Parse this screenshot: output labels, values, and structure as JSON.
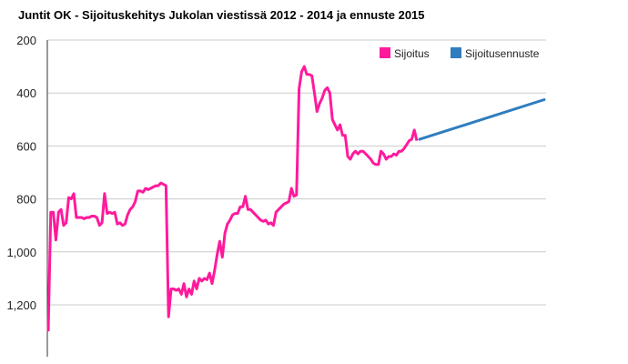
{
  "chart_data": {
    "type": "line",
    "title": "Juntit OK - Sijoituskehitys Jukolan viestissä 2012 - 2014 ja ennuste 2015",
    "xlabel": "",
    "ylabel": "",
    "y_inverted": true,
    "ylim": [
      200,
      1300
    ],
    "yticks": [
      200,
      400,
      600,
      800,
      1000,
      1200
    ],
    "ytick_labels": [
      "200",
      "400",
      "600",
      "800",
      "1,000",
      "1,200"
    ],
    "grid": true,
    "legend_position": "top-right",
    "series": [
      {
        "name": "Sijoitus",
        "color": "#ff1a9c",
        "values": [
          1300,
          850,
          850,
          955,
          850,
          840,
          900,
          890,
          795,
          800,
          780,
          870,
          870,
          870,
          875,
          870,
          870,
          865,
          865,
          870,
          900,
          890,
          780,
          855,
          850,
          855,
          850,
          895,
          890,
          900,
          895,
          860,
          840,
          830,
          810,
          770,
          770,
          775,
          760,
          765,
          760,
          755,
          750,
          750,
          740,
          745,
          750,
          1245,
          1140,
          1140,
          1145,
          1140,
          1160,
          1120,
          1170,
          1140,
          1160,
          1110,
          1140,
          1100,
          1110,
          1100,
          1105,
          1080,
          1120,
          1070,
          1010,
          960,
          1020,
          930,
          895,
          880,
          860,
          855,
          855,
          830,
          830,
          790,
          840,
          840,
          850,
          860,
          870,
          880,
          885,
          880,
          895,
          890,
          900,
          850,
          840,
          830,
          820,
          815,
          810,
          760,
          790,
          785,
          385,
          320,
          300,
          330,
          330,
          335,
          400,
          470,
          440,
          420,
          390,
          380,
          400,
          500,
          520,
          540,
          520,
          560,
          560,
          640,
          650,
          630,
          620,
          630,
          620,
          620,
          630,
          640,
          650,
          665,
          670,
          670,
          620,
          630,
          650,
          640,
          640,
          630,
          635,
          620,
          620,
          610,
          595,
          580,
          575,
          540,
          580
        ]
      },
      {
        "name": "Sijoitusennuste",
        "color": "#2f7dbf",
        "values": [
          575,
          425
        ]
      }
    ]
  }
}
